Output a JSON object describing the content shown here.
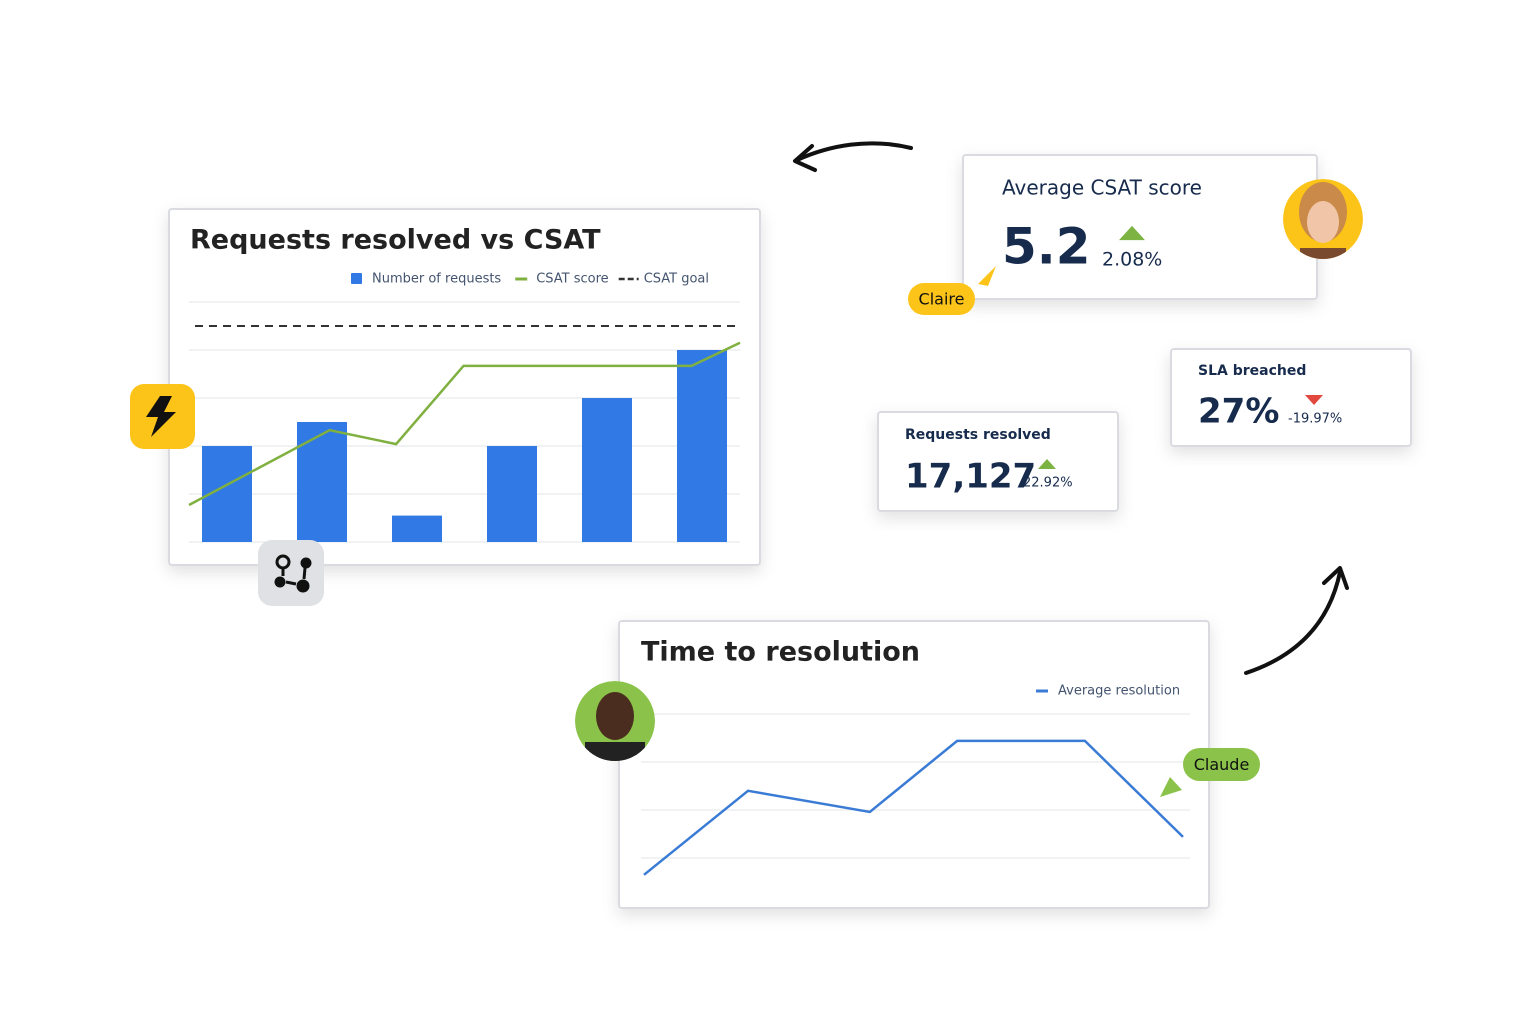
{
  "chart_data": [
    {
      "type": "bar",
      "title": "Requests resolved vs CSAT",
      "categories": [
        null,
        null,
        null,
        null,
        null,
        null
      ],
      "xlim": [
        -0.5,
        5.5
      ],
      "ylim": [
        0,
        5
      ],
      "yticks": [
        0,
        1,
        2,
        3,
        4,
        5
      ],
      "grid": true,
      "series": [
        {
          "name": "Number of requests",
          "type": "bar",
          "color": "#3179e4",
          "values": [
            2,
            2.5,
            0.55,
            2,
            3,
            4
          ]
        },
        {
          "name": "CSAT score",
          "type": "line",
          "color": "#80b040",
          "x": [
            -0.4,
            1.08,
            1.78,
            2.49,
            4.89,
            5.4
          ],
          "values": [
            0.77,
            2.33,
            2.04,
            3.67,
            3.67,
            4.15
          ]
        }
      ],
      "goal": {
        "name": "CSAT goal",
        "value": 4.5,
        "color": "#333333"
      }
    },
    {
      "type": "line",
      "title": "Time to resolution",
      "xlim": [
        0,
        10
      ],
      "ylim": [
        -0.5,
        3
      ],
      "yticks": [
        0,
        1,
        2,
        3
      ],
      "grid": true,
      "series": [
        {
          "name": "Average resolution",
          "color": "#3a7bd5",
          "x": [
            0,
            1.93,
            4.19,
            5.81,
            8.18,
            10
          ],
          "values": [
            -0.35,
            1.4,
            0.96,
            2.44,
            2.44,
            0.44
          ]
        }
      ]
    }
  ],
  "kpis": [
    {
      "title": "Average CSAT score",
      "value": "5.2",
      "change": "2.08%",
      "trend": "up"
    },
    {
      "title": "Requests resolved",
      "value": "17,127",
      "change": "22.92%",
      "trend": "up"
    },
    {
      "title": "SLA breached",
      "value": "27%",
      "change": "-19.97%",
      "trend": "down"
    }
  ],
  "tags": [
    "Claire",
    "Claude"
  ]
}
